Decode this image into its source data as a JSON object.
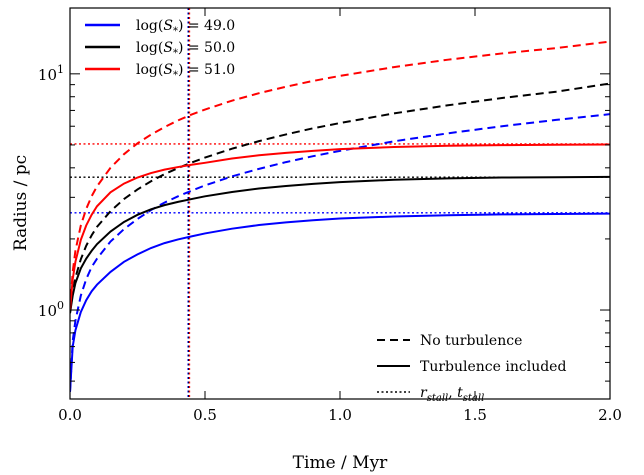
{
  "chart_data": {
    "type": "line",
    "title": "",
    "xlabel": "Time / Myr",
    "ylabel": "Radius / pc",
    "xlim": [
      0.0,
      2.0
    ],
    "ylim": [
      0.42,
      19.0
    ],
    "yscale": "log",
    "grid": false,
    "x_ticks": [
      {
        "value": 0.0,
        "label": "0.0"
      },
      {
        "value": 0.5,
        "label": "0.5"
      },
      {
        "value": 1.0,
        "label": "1.0"
      },
      {
        "value": 1.5,
        "label": "1.5"
      },
      {
        "value": 2.0,
        "label": "2.0"
      }
    ],
    "y_ticks": [
      {
        "value": 1,
        "base": "10",
        "exp": "0"
      },
      {
        "value": 10,
        "base": "10",
        "exp": "1"
      }
    ],
    "x_samples": [
      0.0,
      0.01,
      0.02,
      0.04,
      0.06,
      0.08,
      0.1,
      0.15,
      0.2,
      0.25,
      0.3,
      0.35,
      0.4,
      0.45,
      0.5,
      0.6,
      0.7,
      0.8,
      0.9,
      1.0,
      1.2,
      1.4,
      1.6,
      1.8,
      2.0
    ],
    "series": [
      {
        "name": "log(S*) = 49.0",
        "color": "#0000ff",
        "turbulent": [
          0.45,
          0.7,
          0.82,
          0.98,
          1.1,
          1.2,
          1.28,
          1.45,
          1.6,
          1.72,
          1.83,
          1.92,
          1.99,
          2.05,
          2.11,
          2.21,
          2.29,
          2.35,
          2.4,
          2.44,
          2.49,
          2.52,
          2.54,
          2.55,
          2.56
        ],
        "no_turbulence": [
          0.45,
          0.74,
          0.9,
          1.15,
          1.35,
          1.52,
          1.65,
          1.95,
          2.2,
          2.43,
          2.65,
          2.85,
          3.03,
          3.2,
          3.37,
          3.68,
          3.96,
          4.23,
          4.48,
          4.72,
          5.18,
          5.6,
          6.0,
          6.38,
          6.75
        ],
        "r_stall": 2.58
      },
      {
        "name": "log(S*) = 50.0",
        "color": "#000000",
        "turbulent": [
          0.97,
          1.15,
          1.3,
          1.5,
          1.65,
          1.78,
          1.9,
          2.15,
          2.36,
          2.53,
          2.67,
          2.78,
          2.87,
          2.95,
          3.03,
          3.16,
          3.27,
          3.35,
          3.42,
          3.48,
          3.56,
          3.61,
          3.64,
          3.65,
          3.66
        ],
        "no_turbulence": [
          0.97,
          1.2,
          1.37,
          1.64,
          1.87,
          2.07,
          2.25,
          2.62,
          2.95,
          3.24,
          3.51,
          3.76,
          3.99,
          4.21,
          4.42,
          4.82,
          5.19,
          5.54,
          5.88,
          6.19,
          6.8,
          7.36,
          7.9,
          8.4,
          9.1
        ],
        "r_stall": 3.65
      },
      {
        "name": "log(S*) = 51.0",
        "color": "#ff0000",
        "turbulent": [
          1.0,
          1.35,
          1.6,
          1.98,
          2.28,
          2.53,
          2.75,
          3.15,
          3.43,
          3.64,
          3.8,
          3.93,
          4.03,
          4.12,
          4.2,
          4.38,
          4.52,
          4.63,
          4.72,
          4.8,
          4.9,
          4.96,
          4.99,
          5.01,
          5.02
        ],
        "no_turbulence": [
          1.0,
          1.45,
          1.78,
          2.28,
          2.68,
          3.03,
          3.34,
          4.0,
          4.57,
          5.08,
          5.53,
          5.95,
          6.35,
          6.72,
          7.06,
          7.7,
          8.28,
          8.82,
          9.33,
          9.8,
          10.68,
          11.48,
          12.2,
          12.85,
          13.7
        ],
        "r_stall": 5.05
      }
    ],
    "t_stall": [
      0.44,
      0.44,
      0.44
    ],
    "legend_series": {
      "placement": "upper-left",
      "items": [
        {
          "base": "log",
          "sym": "S",
          "sub": "*",
          "eq": " = 49.0",
          "color": "#0000ff"
        },
        {
          "base": "log",
          "sym": "S",
          "sub": "*",
          "eq": " = 50.0",
          "color": "#000000"
        },
        {
          "base": "log",
          "sym": "S",
          "sub": "*",
          "eq": " = 51.0",
          "color": "#ff0000"
        }
      ]
    },
    "legend_styles": {
      "placement": "lower-right",
      "items": [
        {
          "style": "dashed",
          "label": "No turbulence"
        },
        {
          "style": "solid",
          "label": "Turbulence included"
        },
        {
          "style": "dotted",
          "label_r": "r",
          "label_r_sub": "stall",
          "sep": ", ",
          "label_t": "t",
          "label_t_sub": "stall"
        }
      ]
    }
  }
}
